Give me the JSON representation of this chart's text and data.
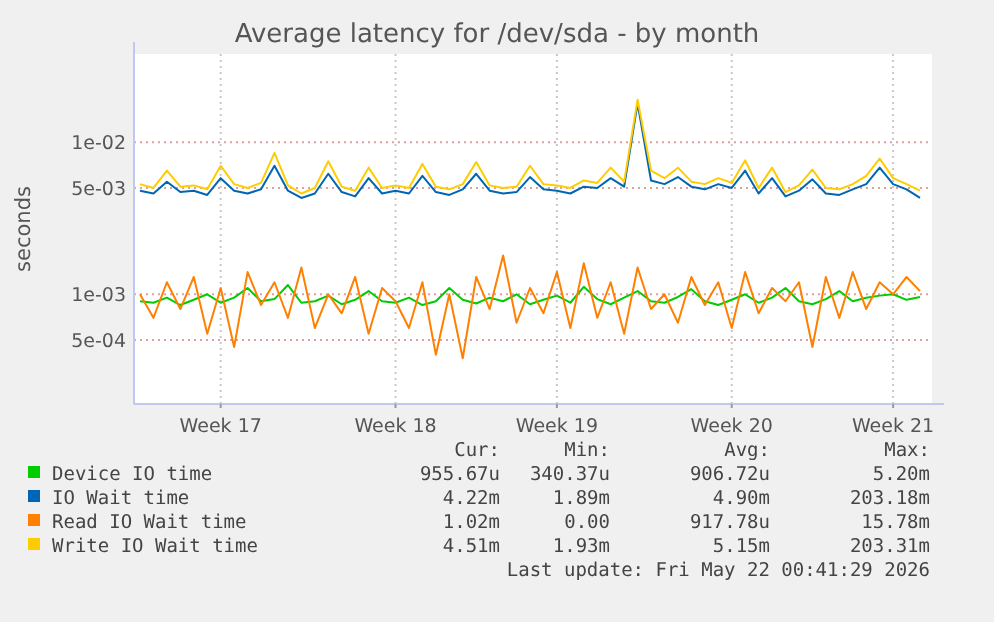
{
  "chart_data": {
    "type": "line",
    "title": "Average latency for /dev/sda - by month",
    "ylabel": "seconds",
    "log": "y",
    "grid": true,
    "legend": "bottom",
    "marker": "none",
    "line_style": "solid",
    "ylim": [
      0.00019,
      0.038
    ],
    "yticks": [
      {
        "value": 0.0005,
        "label": "5e-04"
      },
      {
        "value": 0.001,
        "label": "1e-03"
      },
      {
        "value": 0.005,
        "label": "5e-03"
      },
      {
        "value": 0.01,
        "label": "1e-02"
      }
    ],
    "categories": [
      null,
      null,
      null,
      null,
      null,
      null,
      "Week 17",
      null,
      null,
      null,
      null,
      null,
      null,
      null,
      null,
      null,
      null,
      null,
      null,
      "Week 18",
      null,
      null,
      null,
      null,
      null,
      null,
      null,
      null,
      null,
      null,
      null,
      "Week 19",
      null,
      null,
      null,
      null,
      null,
      null,
      null,
      null,
      null,
      null,
      null,
      null,
      "Week 20",
      null,
      null,
      null,
      null,
      null,
      null,
      null,
      null,
      null,
      null,
      null,
      "Week 21",
      null,
      null
    ],
    "series": [
      {
        "name": "Device IO time",
        "color": "#00cc00",
        "values": [
          0.0009,
          0.00088,
          0.00095,
          0.00085,
          0.00092,
          0.001,
          0.00088,
          0.00095,
          0.0011,
          0.0009,
          0.00093,
          0.00115,
          0.00088,
          0.0009,
          0.00098,
          0.00086,
          0.00092,
          0.00105,
          0.0009,
          0.00088,
          0.00095,
          0.00085,
          0.0009,
          0.0011,
          0.00092,
          0.00087,
          0.00095,
          0.0009,
          0.001,
          0.00086,
          0.00092,
          0.00098,
          0.00088,
          0.00112,
          0.00093,
          0.00086,
          0.00095,
          0.00105,
          0.0009,
          0.00088,
          0.00096,
          0.00108,
          0.0009,
          0.00085,
          0.00092,
          0.001,
          0.00088,
          0.00095,
          0.0011,
          0.0009,
          0.00086,
          0.00093,
          0.00105,
          0.0009,
          0.00095,
          0.00098,
          0.001,
          0.00092,
          0.00096
        ]
      },
      {
        "name": "IO Wait time",
        "color": "#0066b3",
        "values": [
          0.0048,
          0.0046,
          0.0055,
          0.0047,
          0.0048,
          0.0045,
          0.0058,
          0.0048,
          0.0046,
          0.0049,
          0.007,
          0.0048,
          0.0043,
          0.0046,
          0.0062,
          0.0047,
          0.0044,
          0.0058,
          0.0046,
          0.0048,
          0.0046,
          0.006,
          0.0047,
          0.0045,
          0.0049,
          0.0062,
          0.0048,
          0.0046,
          0.0047,
          0.0059,
          0.0049,
          0.0048,
          0.0046,
          0.0051,
          0.005,
          0.0058,
          0.0051,
          0.018,
          0.0056,
          0.0053,
          0.0059,
          0.0051,
          0.0049,
          0.0053,
          0.005,
          0.0065,
          0.0046,
          0.0058,
          0.0044,
          0.0048,
          0.0057,
          0.0046,
          0.0045,
          0.0049,
          0.0053,
          0.0068,
          0.0053,
          0.0049,
          0.0043
        ]
      },
      {
        "name": "Read IO Wait time",
        "color": "#ff8000",
        "values": [
          0.001,
          0.0007,
          0.0012,
          0.0008,
          0.0013,
          0.00055,
          0.0011,
          0.00045,
          0.0014,
          0.00085,
          0.0012,
          0.0007,
          0.0015,
          0.0006,
          0.001,
          0.00075,
          0.0013,
          0.00055,
          0.0011,
          0.0009,
          0.0006,
          0.0012,
          0.0004,
          0.001,
          0.00038,
          0.0013,
          0.0008,
          0.0018,
          0.00065,
          0.0011,
          0.00075,
          0.0014,
          0.0006,
          0.0016,
          0.0007,
          0.0012,
          0.00055,
          0.0015,
          0.0008,
          0.001,
          0.00065,
          0.0013,
          0.00085,
          0.0012,
          0.0006,
          0.0014,
          0.00075,
          0.0011,
          0.0009,
          0.0012,
          0.00045,
          0.0013,
          0.0007,
          0.0014,
          0.0008,
          0.0012,
          0.001,
          0.0013,
          0.00105
        ]
      },
      {
        "name": "Write IO Wait time",
        "color": "#ffcc00",
        "values": [
          0.0053,
          0.005,
          0.0065,
          0.0051,
          0.0052,
          0.0049,
          0.007,
          0.0053,
          0.005,
          0.0054,
          0.0085,
          0.0052,
          0.0046,
          0.005,
          0.0075,
          0.0051,
          0.0048,
          0.0068,
          0.005,
          0.0052,
          0.005,
          0.0072,
          0.0051,
          0.0049,
          0.0053,
          0.0074,
          0.0052,
          0.005,
          0.0051,
          0.007,
          0.0053,
          0.0052,
          0.005,
          0.0056,
          0.0054,
          0.0068,
          0.0055,
          0.019,
          0.0065,
          0.0058,
          0.0068,
          0.0055,
          0.0053,
          0.0058,
          0.0054,
          0.0076,
          0.005,
          0.0068,
          0.0047,
          0.0052,
          0.0066,
          0.005,
          0.0049,
          0.0053,
          0.006,
          0.0078,
          0.0058,
          0.0053,
          0.0048
        ]
      }
    ],
    "annotations": [
      "Cur:",
      "Min:",
      "Avg:",
      "Max:",
      "955.67u",
      "340.37u",
      "906.72u",
      "5.20m",
      "4.22m",
      "1.89m",
      "4.90m",
      "203.18m",
      "1.02m",
      "0.00",
      "917.78u",
      "15.78m",
      "4.51m",
      "1.93m",
      "5.15m",
      "203.31m",
      "Last update: Fri May 22 00:41:29 2026"
    ]
  }
}
